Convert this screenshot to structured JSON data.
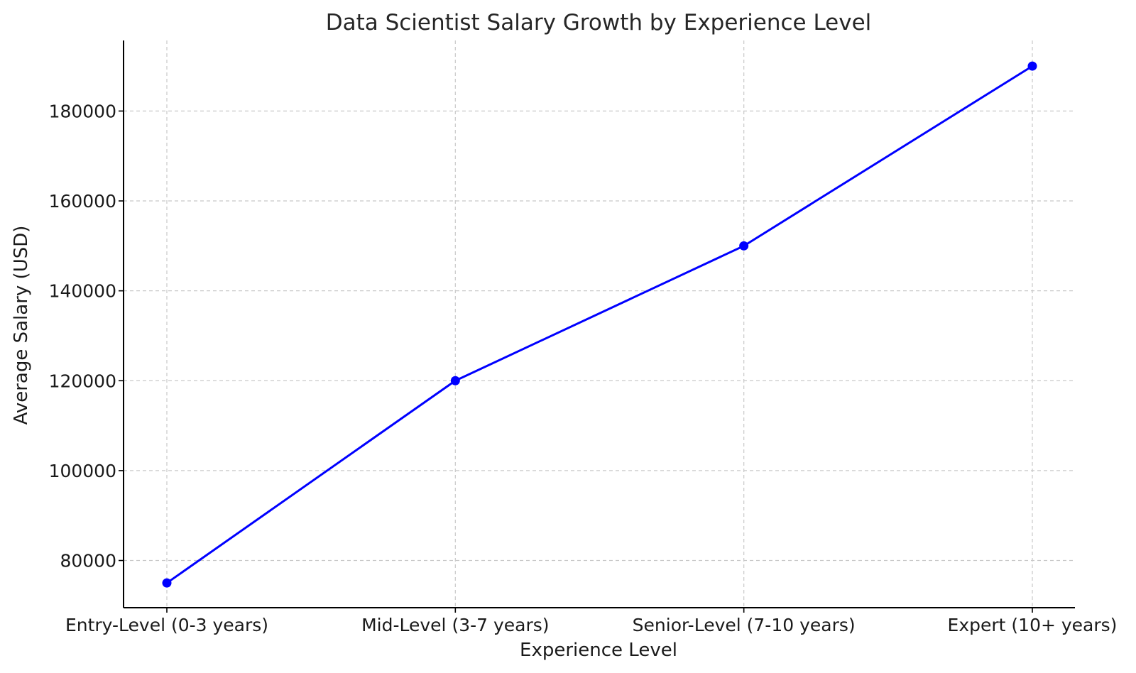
{
  "chart_data": {
    "type": "line",
    "title": "Data Scientist Salary Growth by Experience Level",
    "xlabel": "Experience Level",
    "ylabel": "Average Salary (USD)",
    "categories": [
      "Entry-Level (0-3 years)",
      "Mid-Level (3-7 years)",
      "Senior-Level (7-10 years)",
      "Expert (10+ years)"
    ],
    "series": [
      {
        "values": [
          75000,
          120000,
          150000,
          190000
        ],
        "color": "#0000ff",
        "marker": "circle"
      }
    ],
    "ylim": [
      69500,
      195700
    ],
    "yticks": [
      80000,
      100000,
      120000,
      140000,
      160000,
      180000
    ],
    "grid": true
  }
}
